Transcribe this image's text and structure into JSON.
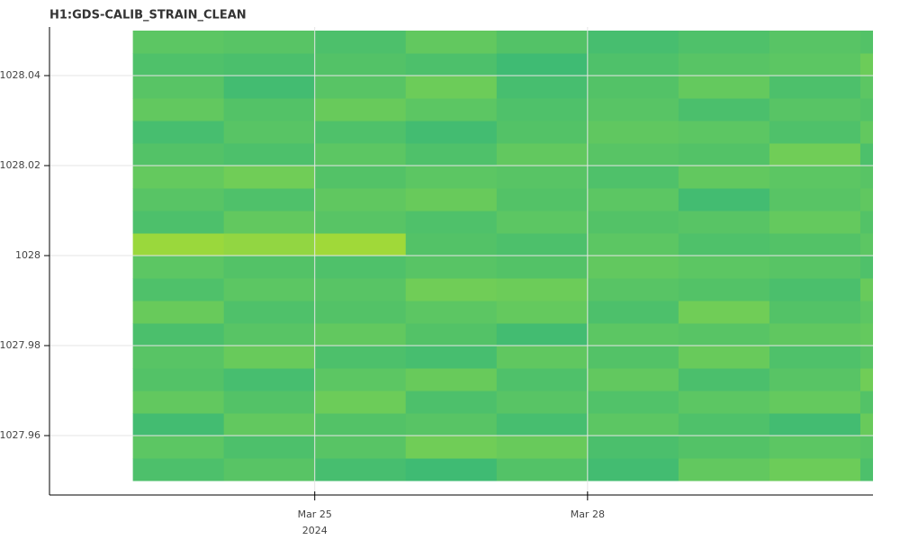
{
  "chart_data": {
    "type": "heatmap",
    "title": "H1:GDS-CALIB_STRAIN_CLEAN",
    "x": [
      "2024-03-23",
      "2024-03-24",
      "2024-03-25",
      "2024-03-26",
      "2024-03-27",
      "2024-03-28",
      "2024-03-29",
      "2024-03-30",
      "2024-03-31"
    ],
    "ybins": [
      1027.95,
      1027.955,
      1027.96,
      1027.965,
      1027.97,
      1027.975,
      1027.98,
      1027.985,
      1027.99,
      1027.995,
      1028,
      1028.005,
      1028.01,
      1028.015,
      1028.02,
      1028.025,
      1028.03,
      1028.035,
      1028.04,
      1028.045,
      1028.05
    ],
    "z": [
      [
        0.45,
        0.5,
        0.42,
        0.38,
        0.48,
        0.4,
        0.55,
        0.6,
        0.45
      ],
      [
        0.52,
        0.45,
        0.5,
        0.62,
        0.58,
        0.44,
        0.48,
        0.52,
        0.5
      ],
      [
        0.4,
        0.55,
        0.48,
        0.5,
        0.42,
        0.52,
        0.46,
        0.4,
        0.58
      ],
      [
        0.55,
        0.48,
        0.6,
        0.45,
        0.5,
        0.47,
        0.52,
        0.56,
        0.48
      ],
      [
        0.48,
        0.42,
        0.52,
        0.58,
        0.46,
        0.55,
        0.44,
        0.5,
        0.62
      ],
      [
        0.5,
        0.58,
        0.45,
        0.42,
        0.54,
        0.48,
        0.58,
        0.46,
        0.5
      ],
      [
        0.44,
        0.5,
        0.55,
        0.48,
        0.4,
        0.52,
        0.5,
        0.54,
        0.56
      ],
      [
        0.58,
        0.46,
        0.48,
        0.52,
        0.56,
        0.45,
        0.62,
        0.48,
        0.52
      ],
      [
        0.46,
        0.52,
        0.5,
        0.62,
        0.6,
        0.5,
        0.48,
        0.44,
        0.58
      ],
      [
        0.52,
        0.48,
        0.46,
        0.5,
        0.48,
        0.55,
        0.52,
        0.5,
        0.46
      ],
      [
        0.85,
        0.8,
        0.88,
        0.48,
        0.45,
        0.52,
        0.46,
        0.48,
        0.52
      ],
      [
        0.45,
        0.55,
        0.5,
        0.46,
        0.52,
        0.48,
        0.5,
        0.56,
        0.48
      ],
      [
        0.5,
        0.46,
        0.54,
        0.58,
        0.48,
        0.52,
        0.4,
        0.5,
        0.54
      ],
      [
        0.56,
        0.62,
        0.48,
        0.52,
        0.5,
        0.46,
        0.55,
        0.52,
        0.5
      ],
      [
        0.48,
        0.45,
        0.52,
        0.46,
        0.55,
        0.5,
        0.48,
        0.62,
        0.45
      ],
      [
        0.42,
        0.5,
        0.46,
        0.4,
        0.48,
        0.54,
        0.52,
        0.46,
        0.55
      ],
      [
        0.55,
        0.48,
        0.58,
        0.52,
        0.46,
        0.5,
        0.44,
        0.5,
        0.48
      ],
      [
        0.5,
        0.4,
        0.5,
        0.6,
        0.42,
        0.48,
        0.56,
        0.45,
        0.52
      ],
      [
        0.46,
        0.44,
        0.48,
        0.45,
        0.38,
        0.46,
        0.5,
        0.52,
        0.6
      ],
      [
        0.52,
        0.5,
        0.45,
        0.55,
        0.48,
        0.42,
        0.46,
        0.5,
        0.48
      ]
    ],
    "zlim": [
      0,
      1
    ],
    "colorscale": [
      "#1f988b",
      "#35b779",
      "#7ad151",
      "#b5de2b"
    ],
    "xlim": [
      "2024-03-22T02:00",
      "2024-03-31T03:20"
    ],
    "xticks": [
      {
        "value": "2024-03-25",
        "label": "Mar 25"
      },
      {
        "value": "2024-03-28",
        "label": "Mar 28"
      }
    ],
    "xlabel": "2024",
    "ylim": [
      1027.9468,
      1028.0508
    ],
    "yticks": [
      1027.96,
      1027.98,
      1028,
      1028.02,
      1028.04
    ],
    "grid": true
  }
}
